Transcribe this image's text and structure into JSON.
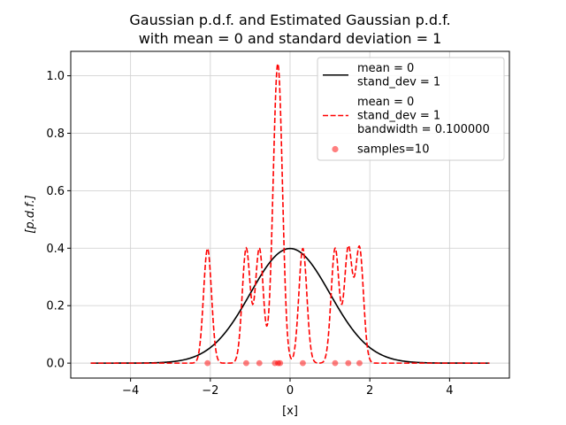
{
  "chart_data": {
    "type": "line",
    "title": "Gaussian p.d.f. and Estimated Gaussian p.d.f.\nwith mean = 0 and standard deviation = 1",
    "title_lines": [
      "Gaussian p.d.f. and Estimated Gaussian p.d.f.",
      "with mean = 0 and standard deviation = 1"
    ],
    "xlabel": "[x]",
    "ylabel": "[p.d.f.]",
    "xlim": [
      -5.5,
      5.5
    ],
    "ylim": [
      -0.052,
      1.085
    ],
    "xticks": [
      -4,
      -2,
      0,
      2,
      4
    ],
    "xtick_labels": [
      "−4",
      "−2",
      "0",
      "2",
      "4"
    ],
    "yticks": [
      0.0,
      0.2,
      0.4,
      0.6,
      0.8,
      1.0
    ],
    "ytick_labels": [
      "0.0",
      "0.2",
      "0.4",
      "0.6",
      "0.8",
      "1.0"
    ],
    "grid": true,
    "legend_position": "top-right",
    "series": [
      {
        "name": "mean = 0\nstand_dev = 1",
        "legend_lines": [
          "mean = 0",
          "stand_dev = 1"
        ],
        "kind": "gaussian_pdf",
        "mean": 0,
        "std": 1,
        "x_range": [
          -5,
          5
        ],
        "color": "#000000",
        "linestyle": "solid"
      },
      {
        "name": "mean = 0\nstand_dev = 1\nbandwidth = 0.100000",
        "legend_lines": [
          "mean = 0",
          "stand_dev = 1",
          "bandwidth = 0.100000"
        ],
        "kind": "kde_estimate",
        "bandwidth": 0.1,
        "x_range": [
          -5,
          5
        ],
        "color": "#ff0000",
        "linestyle": "dashed"
      },
      {
        "name": "samples=10",
        "legend_lines": [
          "samples=10"
        ],
        "kind": "scatter",
        "color": "#ff0000",
        "alpha": 0.5,
        "x": [
          -2.07,
          -1.1,
          -0.77,
          -0.38,
          -0.3,
          -0.25,
          0.32,
          1.13,
          1.46,
          1.74
        ],
        "y": [
          0,
          0,
          0,
          0,
          0,
          0,
          0,
          0,
          0,
          0
        ]
      }
    ]
  }
}
